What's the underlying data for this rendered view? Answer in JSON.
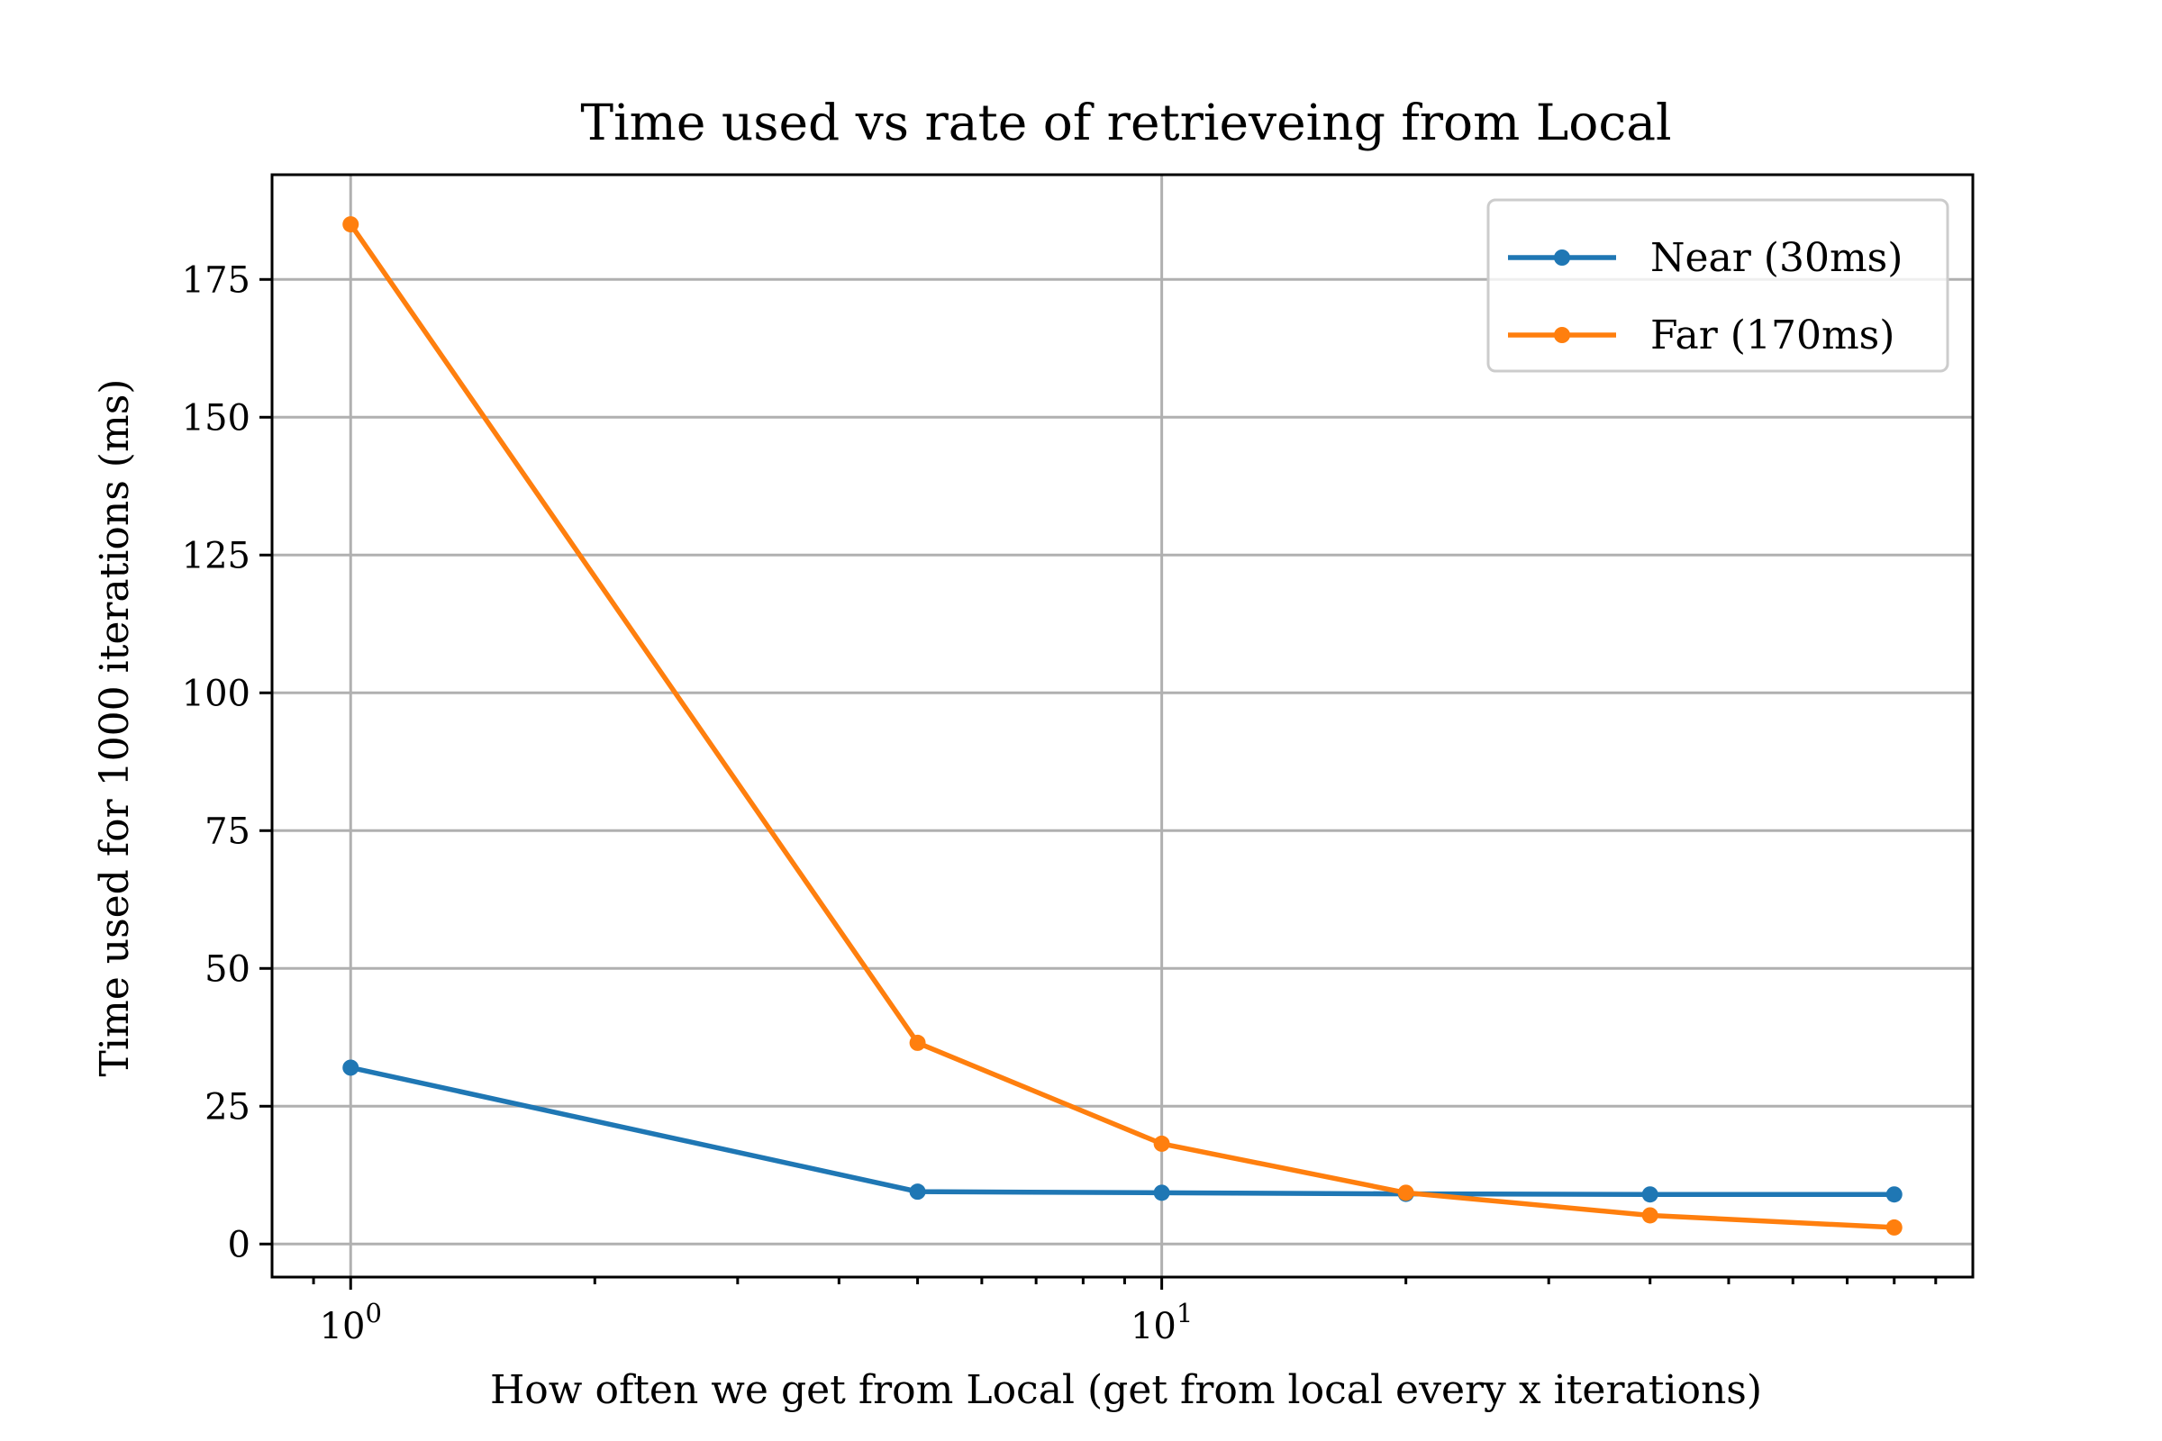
{
  "chart_data": {
    "type": "line",
    "title": "Time used vs rate of retrieveing from Local",
    "xlabel": "How often we get from Local (get from local every x iterations)",
    "ylabel": "Time used for 1000 iterations (ms)",
    "xscale": "log",
    "xlim": [
      0.8,
      100
    ],
    "ylim": [
      -6,
      194
    ],
    "grid": true,
    "legend_position": "top-right",
    "x_ticks": [
      {
        "value": 1,
        "base": "10",
        "exp": "0"
      },
      {
        "value": 10,
        "base": "10",
        "exp": "1"
      }
    ],
    "y_ticks": [
      0,
      25,
      50,
      75,
      100,
      125,
      150,
      175
    ],
    "x": [
      1,
      5,
      10,
      20,
      40,
      80
    ],
    "series": [
      {
        "name": "Near (30ms)",
        "color": "#1f77b4",
        "values": [
          32,
          9.5,
          9.3,
          9.1,
          9.0,
          9.0
        ]
      },
      {
        "name": "Far (170ms)",
        "color": "#ff7f0e",
        "values": [
          185,
          36.5,
          18.2,
          9.3,
          5.2,
          3.0
        ]
      }
    ]
  }
}
